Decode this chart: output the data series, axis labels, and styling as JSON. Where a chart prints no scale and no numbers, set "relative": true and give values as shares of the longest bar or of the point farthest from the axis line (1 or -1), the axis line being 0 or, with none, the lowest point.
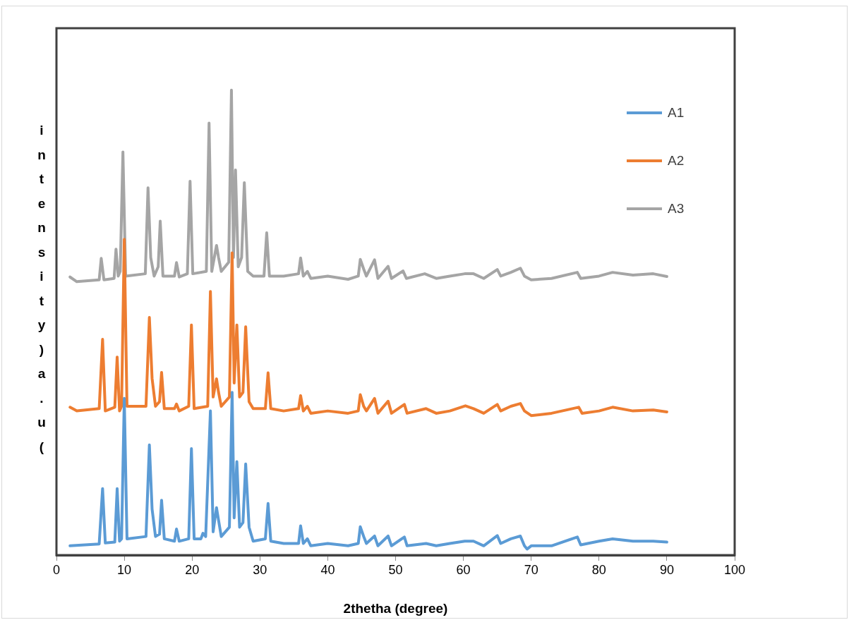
{
  "chart_data": {
    "type": "line",
    "xlabel": "2thetha (degree)",
    "ylabel": "intensity)a.u(",
    "relative": true,
    "xlim": [
      0,
      100
    ],
    "xticks": [
      0,
      10,
      20,
      30,
      40,
      50,
      60,
      70,
      80,
      90,
      100
    ],
    "grid": false,
    "legend": "top right",
    "marker": "none",
    "line_style": "solid",
    "x": [
      2,
      6.3,
      6.8,
      7.2,
      8.6,
      8.95,
      9.3,
      9.6,
      10.0,
      10.4,
      13.2,
      13.7,
      14.1,
      14.6,
      15.2,
      15.5,
      15.9,
      17.4,
      17.7,
      18.1,
      19.5,
      19.9,
      20.3,
      21.3,
      21.6,
      22.0,
      22.7,
      23.1,
      23.6,
      23.9,
      24.3,
      25.5,
      25.9,
      26.2,
      26.6,
      27.0,
      27.5,
      27.9,
      28.4,
      29.0,
      30.8,
      31.2,
      31.6,
      33.5,
      35.7,
      36.0,
      36.4,
      37.0,
      37.5,
      40,
      43,
      44.5,
      44.8,
      45.3,
      45.7,
      46.9,
      47.4,
      48.9,
      49.4,
      51.3,
      51.7,
      54.5,
      56,
      58,
      60.2,
      61.5,
      63,
      65.0,
      65.5,
      67,
      68.4,
      69.0,
      69.4,
      70,
      73,
      76.8,
      77.3,
      80,
      82,
      85,
      88,
      90
    ],
    "series": [
      {
        "name": "A1",
        "color": "#5b9bd5",
        "values": [
          0.02,
          0.024,
          0.143,
          0.026,
          0.028,
          0.143,
          0.03,
          0.035,
          0.337,
          0.035,
          0.04,
          0.237,
          0.099,
          0.04,
          0.045,
          0.118,
          0.035,
          0.03,
          0.056,
          0.03,
          0.035,
          0.229,
          0.035,
          0.035,
          0.047,
          0.04,
          0.31,
          0.05,
          0.102,
          0.075,
          0.04,
          0.06,
          0.35,
          0.08,
          0.201,
          0.06,
          0.07,
          0.196,
          0.06,
          0.03,
          0.035,
          0.111,
          0.03,
          0.025,
          0.025,
          0.063,
          0.025,
          0.035,
          0.02,
          0.025,
          0.02,
          0.025,
          0.061,
          0.04,
          0.025,
          0.041,
          0.02,
          0.041,
          0.02,
          0.039,
          0.02,
          0.025,
          0.02,
          0.025,
          0.03,
          0.03,
          0.02,
          0.042,
          0.025,
          0.035,
          0.041,
          0.02,
          0.013,
          0.02,
          0.02,
          0.039,
          0.022,
          0.03,
          0.035,
          0.03,
          0.03,
          0.028
        ]
      },
      {
        "name": "A2",
        "color": "#ed7d31",
        "x": [
          2,
          3,
          6.3,
          6.8,
          7.2,
          8.6,
          8.95,
          9.3,
          9.6,
          10.0,
          10.4,
          13.2,
          13.7,
          14.1,
          14.6,
          15.2,
          15.5,
          15.9,
          17.4,
          17.7,
          18.1,
          19.5,
          19.9,
          20.3,
          22.3,
          22.7,
          23.1,
          23.6,
          23.9,
          24.3,
          25.5,
          25.9,
          26.2,
          26.6,
          27.0,
          27.5,
          27.9,
          28.4,
          29.0,
          30.8,
          31.2,
          31.6,
          33.5,
          35.7,
          36.0,
          36.4,
          37.0,
          37.5,
          40,
          43,
          44.5,
          44.8,
          45.3,
          45.7,
          46.9,
          47.4,
          48.9,
          49.4,
          51.3,
          51.7,
          54.5,
          56,
          58,
          60.3,
          61.5,
          63,
          65.0,
          65.5,
          67,
          68.4,
          69.0,
          70,
          73,
          77,
          77.5,
          80,
          82,
          85,
          88,
          90
        ],
        "values": [
          0.318,
          0.31,
          0.315,
          0.464,
          0.31,
          0.318,
          0.426,
          0.31,
          0.32,
          0.679,
          0.32,
          0.32,
          0.511,
          0.38,
          0.32,
          0.33,
          0.393,
          0.315,
          0.315,
          0.325,
          0.31,
          0.32,
          0.495,
          0.315,
          0.32,
          0.567,
          0.34,
          0.379,
          0.35,
          0.32,
          0.34,
          0.65,
          0.37,
          0.495,
          0.34,
          0.35,
          0.491,
          0.33,
          0.315,
          0.315,
          0.392,
          0.315,
          0.31,
          0.315,
          0.343,
          0.31,
          0.32,
          0.305,
          0.31,
          0.305,
          0.31,
          0.345,
          0.32,
          0.31,
          0.337,
          0.305,
          0.331,
          0.305,
          0.324,
          0.305,
          0.315,
          0.305,
          0.31,
          0.321,
          0.315,
          0.305,
          0.324,
          0.31,
          0.32,
          0.326,
          0.31,
          0.3,
          0.305,
          0.318,
          0.305,
          0.31,
          0.318,
          0.31,
          0.312,
          0.308
        ]
      },
      {
        "name": "A3",
        "color": "#a5a5a5",
        "x": [
          2,
          3,
          6.3,
          6.6,
          7.0,
          8.5,
          8.78,
          9.1,
          9.4,
          9.8,
          10.2,
          13.1,
          13.5,
          13.9,
          14.4,
          15.0,
          15.3,
          15.7,
          17.4,
          17.7,
          18.1,
          19.3,
          19.7,
          20.1,
          22.1,
          22.5,
          22.9,
          23.6,
          23.9,
          24.3,
          25.4,
          25.8,
          26.1,
          26.4,
          26.8,
          27.3,
          27.7,
          28.2,
          29.0,
          30.6,
          31.0,
          31.4,
          33.5,
          35.7,
          36.0,
          36.4,
          37.0,
          37.5,
          40,
          43,
          44.5,
          44.8,
          45.3,
          45.7,
          46.9,
          47.4,
          48.9,
          49.4,
          51.1,
          51.6,
          54.3,
          56,
          58,
          60.2,
          61.5,
          63,
          65.0,
          65.5,
          67,
          68.4,
          69,
          70,
          73,
          76.8,
          77.3,
          80,
          82,
          85,
          88,
          90
        ],
        "values": [
          0.598,
          0.588,
          0.592,
          0.638,
          0.592,
          0.595,
          0.658,
          0.6,
          0.61,
          0.867,
          0.6,
          0.605,
          0.79,
          0.64,
          0.6,
          0.62,
          0.718,
          0.6,
          0.6,
          0.629,
          0.598,
          0.605,
          0.804,
          0.605,
          0.61,
          0.929,
          0.61,
          0.666,
          0.64,
          0.61,
          0.63,
          1.0,
          0.64,
          0.828,
          0.62,
          0.64,
          0.801,
          0.61,
          0.6,
          0.6,
          0.693,
          0.6,
          0.6,
          0.605,
          0.639,
          0.6,
          0.61,
          0.595,
          0.6,
          0.593,
          0.6,
          0.636,
          0.615,
          0.6,
          0.635,
          0.595,
          0.621,
          0.595,
          0.611,
          0.595,
          0.605,
          0.595,
          0.6,
          0.605,
          0.605,
          0.595,
          0.614,
          0.6,
          0.608,
          0.617,
          0.6,
          0.592,
          0.595,
          0.608,
          0.595,
          0.6,
          0.608,
          0.602,
          0.605,
          0.599
        ]
      }
    ]
  }
}
